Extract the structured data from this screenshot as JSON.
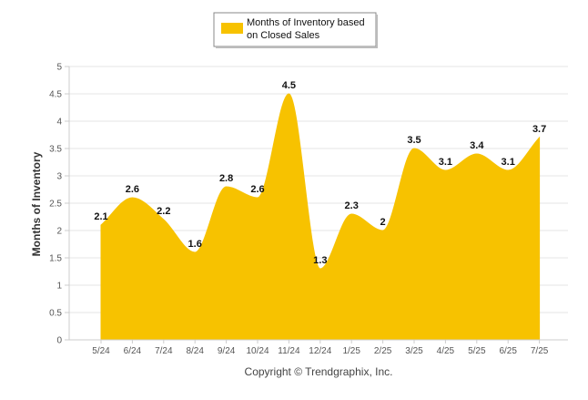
{
  "chart_data": {
    "type": "area",
    "categories": [
      "5/24",
      "6/24",
      "7/24",
      "8/24",
      "9/24",
      "10/24",
      "11/24",
      "12/24",
      "1/25",
      "2/25",
      "3/25",
      "4/25",
      "5/25",
      "6/25",
      "7/25"
    ],
    "series": [
      {
        "name": "Months of Inventory based on Closed Sales",
        "values": [
          2.1,
          2.6,
          2.2,
          1.6,
          2.8,
          2.6,
          4.5,
          1.3,
          2.3,
          2.0,
          3.5,
          3.1,
          3.4,
          3.1,
          3.7
        ]
      }
    ],
    "data_labels": [
      "2.1",
      "2.6",
      "2.2",
      "1.6",
      "2.8",
      "2.6",
      "4.5",
      "1.3",
      "2.3",
      "2",
      "3.5",
      "3.1",
      "3.4",
      "3.1",
      "3.7"
    ],
    "ylabel": "Months of Inventory",
    "xlabel": "",
    "ylim": [
      0,
      5
    ],
    "yticks": [
      0,
      0.5,
      1,
      1.5,
      2,
      2.5,
      3,
      3.5,
      4,
      4.5,
      5
    ],
    "ytick_labels": [
      "0",
      "0.5",
      "1",
      "1.5",
      "2",
      "2.5",
      "3",
      "3.5",
      "4",
      "4.5",
      "5"
    ],
    "grid": true,
    "legend_position": "top-center",
    "legend_lines": [
      "Months of Inventory based",
      "on Closed Sales"
    ],
    "colors": {
      "fill": "#F7C200",
      "grid": "#E6E6E6",
      "axis": "#CCCCCC"
    },
    "footer": "Copyright © Trendgraphix, Inc."
  }
}
